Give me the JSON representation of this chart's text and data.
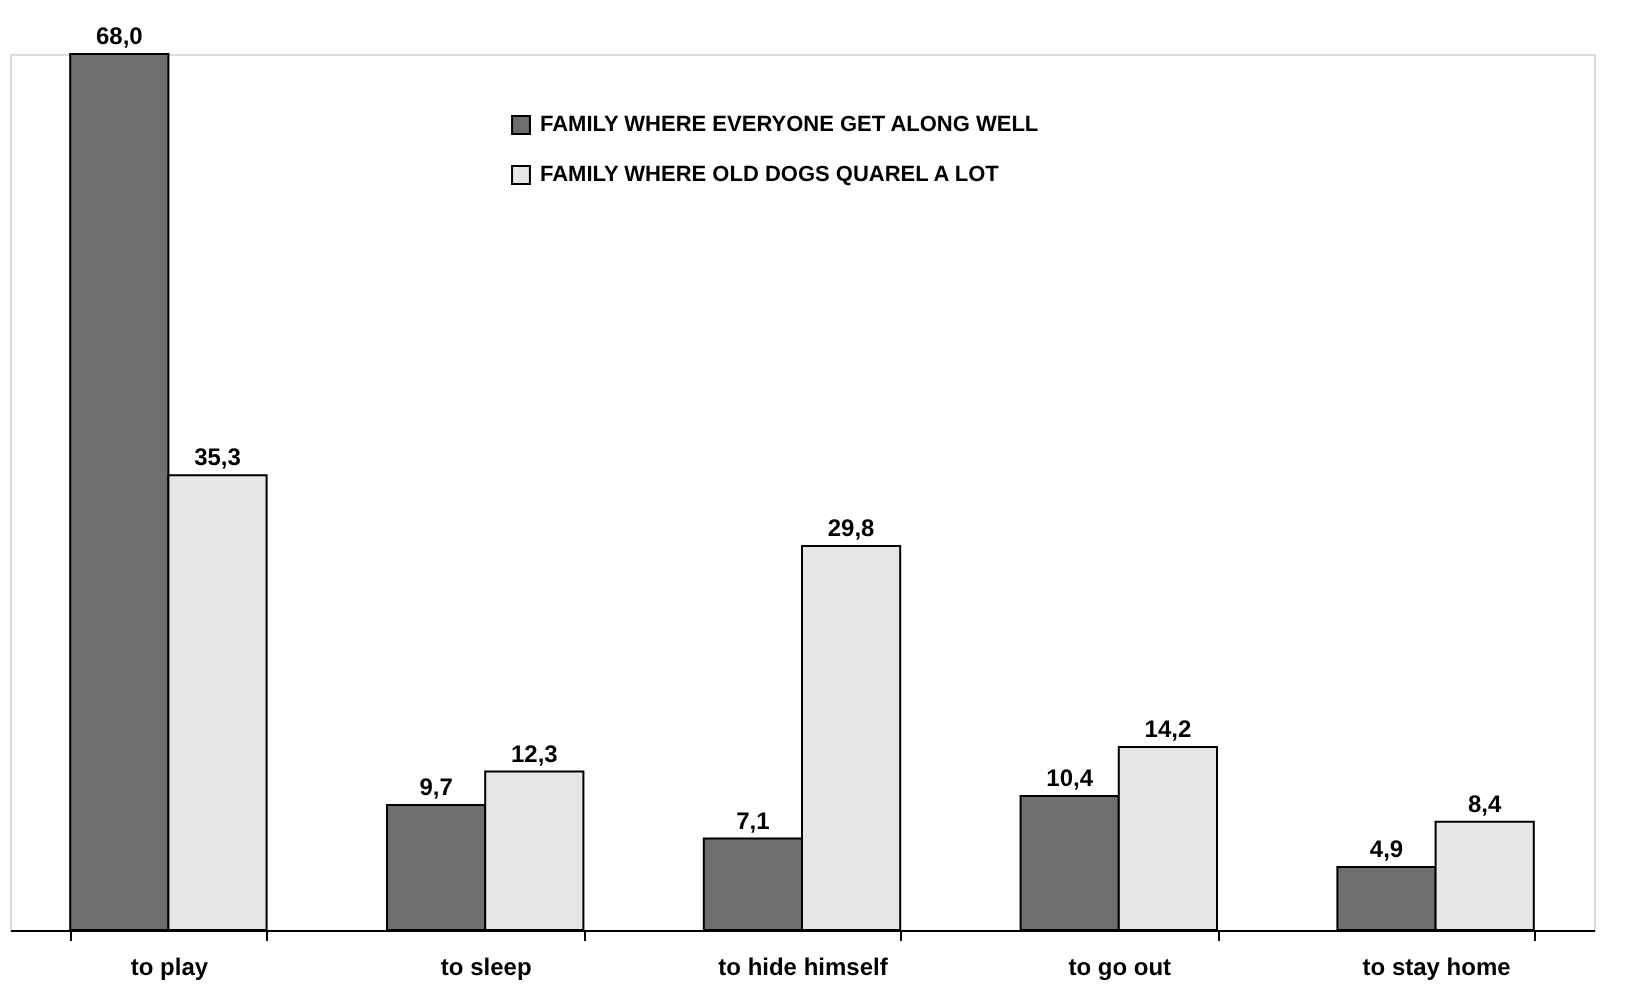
{
  "chart_data": {
    "type": "bar",
    "categories": [
      "to play",
      "to sleep",
      "to hide himself",
      "to go out",
      "to stay home"
    ],
    "series": [
      {
        "name": "FAMILY WHERE EVERYONE GET ALONG WELL",
        "color": "#6e6e6e",
        "values": [
          68.0,
          9.7,
          7.1,
          10.4,
          4.9
        ],
        "value_labels": [
          "68,0",
          "9,7",
          "7,1",
          "10,4",
          "4,9"
        ]
      },
      {
        "name": "FAMILY WHERE OLD DOGS QUAREL A LOT",
        "color": "#e6e6e6",
        "values": [
          35.3,
          12.3,
          29.8,
          14.2,
          8.4
        ],
        "value_labels": [
          "35,3",
          "12,3",
          "29,8",
          "14,2",
          "8,4"
        ]
      }
    ],
    "legend": "top",
    "grid": false
  }
}
